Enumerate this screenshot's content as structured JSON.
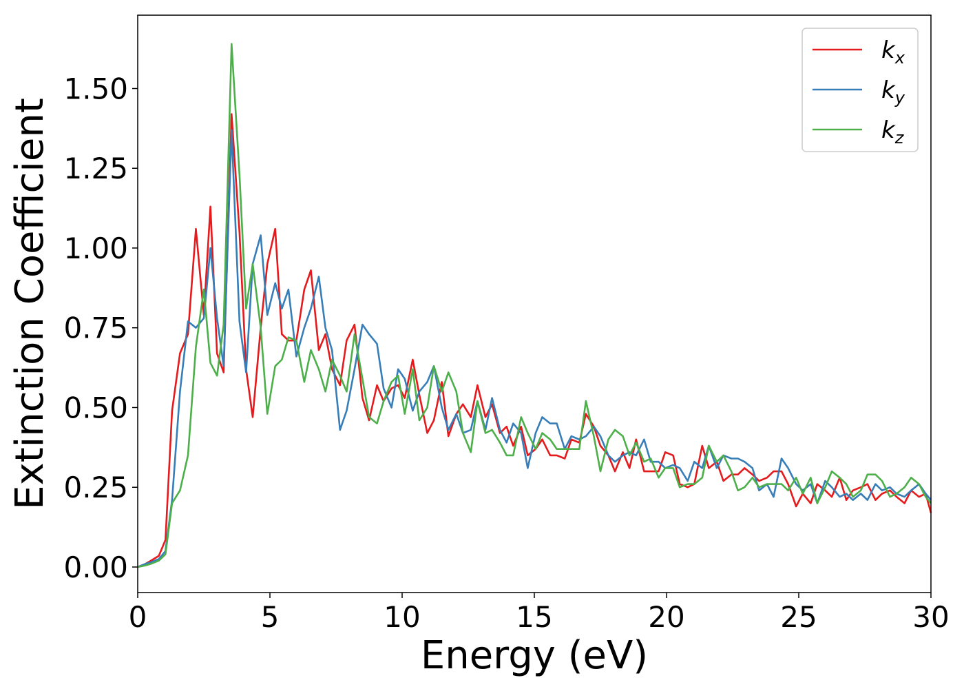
{
  "chart_data": {
    "type": "line",
    "xlabel": "Energy (eV)",
    "ylabel": "Extinction Coefficient",
    "xlim": [
      0,
      30
    ],
    "ylim": [
      -0.08,
      1.73
    ],
    "xticks": [
      0,
      5,
      10,
      15,
      20,
      25,
      30
    ],
    "xtick_labels": [
      "0",
      "5",
      "10",
      "15",
      "20",
      "25",
      "30"
    ],
    "yticks": [
      0,
      0.25,
      0.5,
      0.75,
      1.0,
      1.25,
      1.5
    ],
    "ytick_labels": [
      "0.00",
      "0.25",
      "0.50",
      "0.75",
      "1.00",
      "1.25",
      "1.50"
    ],
    "grid": false,
    "legend_position": "top-right",
    "x": [
      0,
      0.3,
      0.5,
      0.8,
      1.05,
      1.3,
      1.6,
      1.9,
      2.2,
      2.5,
      2.75,
      3.0,
      3.25,
      3.55,
      3.85,
      4.1,
      4.35,
      4.65,
      4.9,
      5.2,
      5.45,
      5.7,
      6.0,
      6.3,
      6.55,
      6.85,
      7.1,
      7.35,
      7.65,
      7.9,
      8.2,
      8.5,
      8.75,
      9.05,
      9.3,
      9.6,
      9.85,
      10.1,
      10.4,
      10.65,
      10.95,
      11.2,
      11.5,
      11.75,
      12.05,
      12.3,
      12.6,
      12.85,
      13.15,
      13.4,
      13.7,
      13.95,
      14.2,
      14.5,
      14.75,
      15.05,
      15.3,
      15.6,
      15.85,
      16.15,
      16.4,
      16.7,
      16.95,
      17.25,
      17.5,
      17.8,
      18.05,
      18.35,
      18.6,
      18.85,
      19.15,
      19.4,
      19.7,
      19.95,
      20.25,
      20.5,
      20.8,
      21.05,
      21.35,
      21.6,
      21.9,
      22.15,
      22.45,
      22.7,
      22.95,
      23.25,
      23.5,
      23.8,
      24.05,
      24.35,
      24.6,
      24.9,
      25.15,
      25.45,
      25.7,
      26.0,
      26.25,
      26.55,
      26.8,
      27.05,
      27.35,
      27.6,
      27.9,
      28.15,
      28.45,
      28.7,
      29.0,
      29.25,
      29.55,
      29.8,
      30.0
    ],
    "series": [
      {
        "name": "k",
        "subscript": "x",
        "color": "#e41a1c",
        "values": [
          0,
          0.01,
          0.02,
          0.035,
          0.085,
          0.49,
          0.67,
          0.73,
          1.06,
          0.79,
          1.13,
          0.67,
          0.61,
          1.42,
          1.05,
          0.62,
          0.47,
          0.75,
          0.95,
          1.06,
          0.73,
          0.71,
          0.71,
          0.87,
          0.93,
          0.68,
          0.73,
          0.62,
          0.57,
          0.71,
          0.76,
          0.53,
          0.46,
          0.57,
          0.52,
          0.56,
          0.57,
          0.53,
          0.65,
          0.54,
          0.42,
          0.46,
          0.58,
          0.41,
          0.48,
          0.51,
          0.47,
          0.57,
          0.47,
          0.51,
          0.42,
          0.44,
          0.38,
          0.44,
          0.35,
          0.37,
          0.4,
          0.35,
          0.35,
          0.34,
          0.4,
          0.39,
          0.48,
          0.44,
          0.38,
          0.35,
          0.3,
          0.36,
          0.31,
          0.4,
          0.3,
          0.3,
          0.3,
          0.36,
          0.35,
          0.26,
          0.25,
          0.26,
          0.38,
          0.31,
          0.33,
          0.27,
          0.29,
          0.29,
          0.31,
          0.29,
          0.27,
          0.28,
          0.3,
          0.3,
          0.26,
          0.19,
          0.23,
          0.2,
          0.26,
          0.24,
          0.22,
          0.28,
          0.21,
          0.24,
          0.25,
          0.26,
          0.21,
          0.23,
          0.24,
          0.22,
          0.2,
          0.24,
          0.22,
          0.23,
          0.17
        ]
      },
      {
        "name": "k",
        "subscript": "y",
        "color": "#377eb8",
        "values": [
          0,
          0.01,
          0.015,
          0.025,
          0.05,
          0.21,
          0.55,
          0.77,
          0.75,
          0.78,
          1.0,
          0.78,
          0.63,
          1.37,
          0.77,
          0.61,
          0.95,
          1.04,
          0.79,
          0.89,
          0.81,
          0.87,
          0.66,
          0.75,
          0.81,
          0.91,
          0.75,
          0.68,
          0.43,
          0.49,
          0.62,
          0.76,
          0.73,
          0.7,
          0.56,
          0.5,
          0.62,
          0.59,
          0.49,
          0.55,
          0.58,
          0.63,
          0.5,
          0.43,
          0.48,
          0.42,
          0.43,
          0.52,
          0.43,
          0.53,
          0.43,
          0.39,
          0.45,
          0.42,
          0.31,
          0.42,
          0.47,
          0.45,
          0.45,
          0.37,
          0.41,
          0.4,
          0.41,
          0.44,
          0.41,
          0.35,
          0.33,
          0.35,
          0.36,
          0.35,
          0.4,
          0.33,
          0.33,
          0.31,
          0.32,
          0.31,
          0.27,
          0.33,
          0.31,
          0.38,
          0.31,
          0.35,
          0.34,
          0.34,
          0.33,
          0.31,
          0.24,
          0.26,
          0.22,
          0.34,
          0.31,
          0.26,
          0.24,
          0.26,
          0.2,
          0.27,
          0.25,
          0.22,
          0.23,
          0.21,
          0.23,
          0.21,
          0.26,
          0.24,
          0.25,
          0.23,
          0.22,
          0.24,
          0.26,
          0.23,
          0.21
        ]
      },
      {
        "name": "k",
        "subscript": "z",
        "color": "#4daf4a",
        "values": [
          0,
          0.005,
          0.01,
          0.02,
          0.04,
          0.2,
          0.24,
          0.35,
          0.69,
          0.87,
          0.64,
          0.6,
          0.76,
          1.64,
          1.23,
          0.81,
          0.95,
          0.75,
          0.48,
          0.63,
          0.65,
          0.72,
          0.71,
          0.58,
          0.68,
          0.62,
          0.55,
          0.65,
          0.6,
          0.55,
          0.73,
          0.59,
          0.47,
          0.45,
          0.52,
          0.58,
          0.6,
          0.48,
          0.62,
          0.46,
          0.5,
          0.63,
          0.55,
          0.61,
          0.55,
          0.42,
          0.36,
          0.52,
          0.42,
          0.43,
          0.39,
          0.35,
          0.35,
          0.47,
          0.42,
          0.37,
          0.42,
          0.4,
          0.37,
          0.37,
          0.37,
          0.37,
          0.52,
          0.41,
          0.3,
          0.4,
          0.43,
          0.41,
          0.35,
          0.39,
          0.33,
          0.34,
          0.28,
          0.31,
          0.31,
          0.25,
          0.26,
          0.26,
          0.28,
          0.38,
          0.33,
          0.35,
          0.3,
          0.24,
          0.25,
          0.28,
          0.25,
          0.26,
          0.26,
          0.26,
          0.24,
          0.28,
          0.23,
          0.28,
          0.2,
          0.25,
          0.3,
          0.28,
          0.26,
          0.22,
          0.24,
          0.29,
          0.29,
          0.27,
          0.22,
          0.23,
          0.25,
          0.28,
          0.26,
          0.22,
          0.2
        ]
      }
    ]
  }
}
